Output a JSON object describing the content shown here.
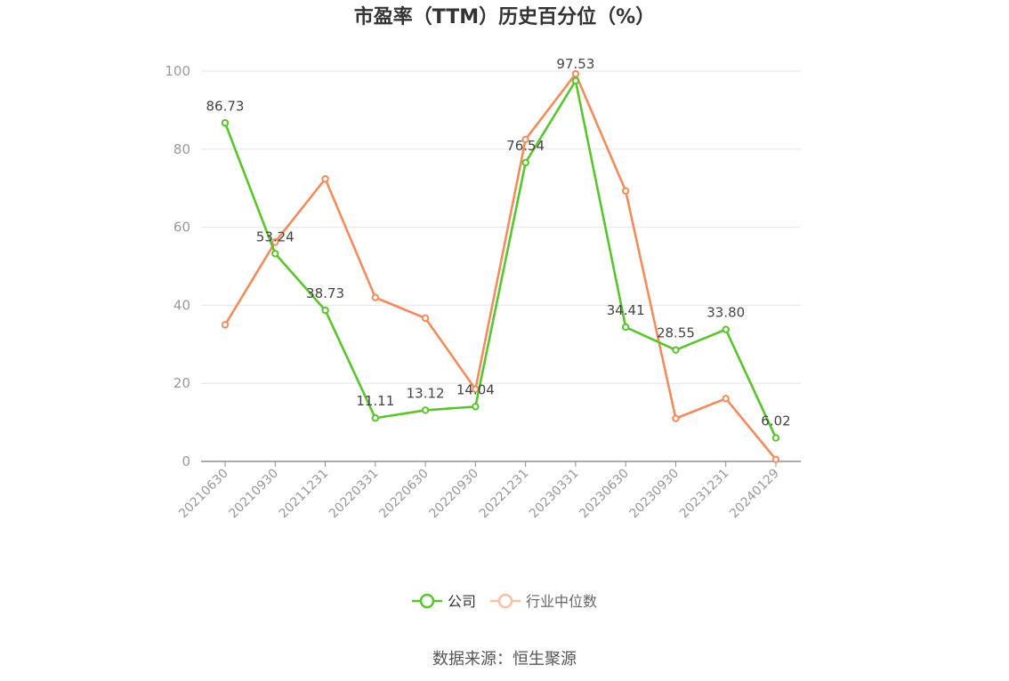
{
  "chart_data": {
    "type": "line",
    "title": "市盈率（TTM）历史百分位（%）",
    "categories": [
      "20210630",
      "20210930",
      "20211231",
      "20220331",
      "20220630",
      "20220930",
      "20221231",
      "20230331",
      "20230630",
      "20230930",
      "20231231",
      "20240129"
    ],
    "ylim": [
      0,
      100
    ],
    "yticks": [
      0,
      20,
      40,
      60,
      80,
      100
    ],
    "grid": true,
    "legend_position": "bottom-center",
    "series": [
      {
        "name": "公司",
        "color": "#5ac42e",
        "values": [
          86.73,
          53.24,
          38.73,
          11.11,
          13.12,
          14.04,
          76.54,
          97.53,
          34.41,
          28.55,
          33.8,
          6.02
        ],
        "labels": [
          "86.73",
          "53.24",
          "38.73",
          "11.11",
          "13.12",
          "14.04",
          "76.54",
          "97.53",
          "34.41",
          "28.55",
          "33.80",
          "6.02"
        ],
        "show_labels": true
      },
      {
        "name": "行业中位数",
        "color": "#f28c5c",
        "values": [
          35.0,
          56.2,
          72.4,
          42.0,
          36.7,
          18.5,
          82.5,
          99.3,
          69.3,
          11.0,
          16.1,
          0.5
        ],
        "show_labels": false
      }
    ],
    "source": "数据来源：恒生聚源"
  }
}
